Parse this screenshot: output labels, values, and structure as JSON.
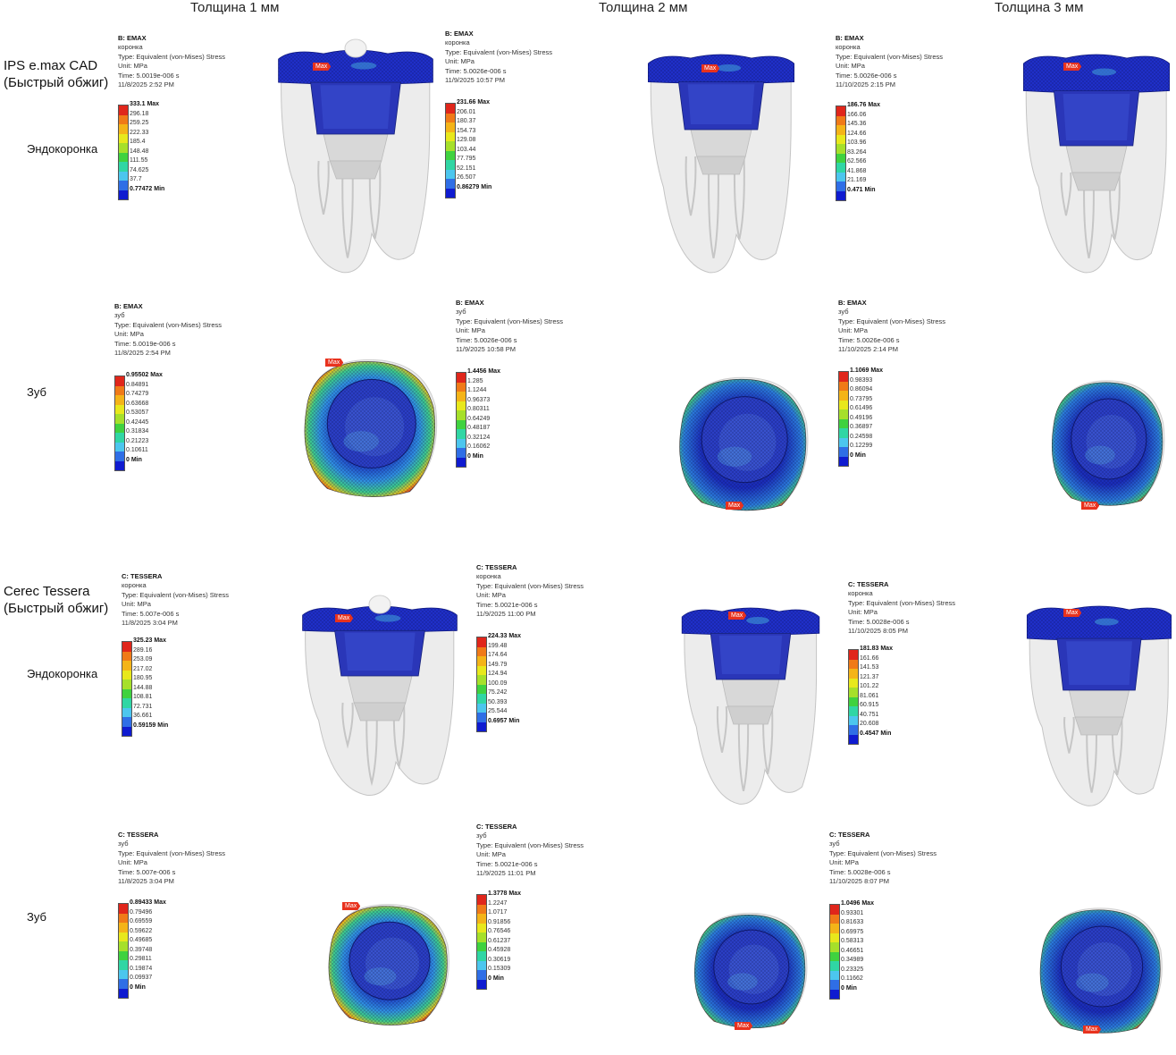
{
  "columns": [
    "Толщина 1 мм",
    "Толщина 2 мм",
    "Толщина 3 мм"
  ],
  "materials": [
    {
      "name": "IPS e.max CAD (Быстрый обжиг)"
    },
    {
      "name": "Cerec Tessera (Быстрый обжиг)"
    }
  ],
  "row_labels": {
    "crown": "Эндокоронка",
    "tooth": "Зуб"
  },
  "max_label": "Max",
  "panels": [
    {
      "title": "B: EMAX",
      "part": "коронка",
      "type": "Type: Equivalent (von-Mises) Stress",
      "unit": "Unit: MPa",
      "time": "Time: 5.0019e-006 s",
      "date": "11/8/2025 2:52 PM",
      "legend": [
        "333.1 Max",
        "296.18",
        "259.25",
        "222.33",
        "185.4",
        "148.48",
        "111.55",
        "74.625",
        "37.7",
        "0.77472 Min"
      ]
    },
    {
      "title": "B: EMAX",
      "part": "коронка",
      "type": "Type: Equivalent (von-Mises) Stress",
      "unit": "Unit: MPa",
      "time": "Time: 5.0026e-006 s",
      "date": "11/9/2025 10:57 PM",
      "legend": [
        "231.66 Max",
        "206.01",
        "180.37",
        "154.73",
        "129.08",
        "103.44",
        "77.795",
        "52.151",
        "26.507",
        "0.86279 Min"
      ]
    },
    {
      "title": "B: EMAX",
      "part": "коронка",
      "type": "Type: Equivalent (von-Mises) Stress",
      "unit": "Unit: MPa",
      "time": "Time: 5.0026e-006 s",
      "date": "11/10/2025 2:15 PM",
      "legend": [
        "186.76 Max",
        "166.06",
        "145.36",
        "124.66",
        "103.96",
        "83.264",
        "62.566",
        "41.868",
        "21.169",
        "0.471 Min"
      ]
    },
    {
      "title": "B: EMAX",
      "part": "зуб",
      "type": "Type: Equivalent (von-Mises) Stress",
      "unit": "Unit: MPa",
      "time": "Time: 5.0019e-006 s",
      "date": "11/8/2025 2:54 PM",
      "legend": [
        "0.95502 Max",
        "0.84891",
        "0.74279",
        "0.63668",
        "0.53057",
        "0.42445",
        "0.31834",
        "0.21223",
        "0.10611",
        "0 Min"
      ]
    },
    {
      "title": "B: EMAX",
      "part": "зуб",
      "type": "Type: Equivalent (von-Mises) Stress",
      "unit": "Unit: MPa",
      "time": "Time: 5.0026e-006 s",
      "date": "11/9/2025 10:58 PM",
      "legend": [
        "1.4456 Max",
        "1.285",
        "1.1244",
        "0.96373",
        "0.80311",
        "0.64249",
        "0.48187",
        "0.32124",
        "0.16062",
        "0 Min"
      ]
    },
    {
      "title": "B: EMAX",
      "part": "зуб",
      "type": "Type: Equivalent (von-Mises) Stress",
      "unit": "Unit: MPa",
      "time": "Time: 5.0026e-006 s",
      "date": "11/10/2025 2:14 PM",
      "legend": [
        "1.1069 Max",
        "0.98393",
        "0.86094",
        "0.73795",
        "0.61496",
        "0.49196",
        "0.36897",
        "0.24598",
        "0.12299",
        "0 Min"
      ]
    },
    {
      "title": "C: TESSERA",
      "part": "коронка",
      "type": "Type: Equivalent (von-Mises) Stress",
      "unit": "Unit: MPa",
      "time": "Time: 5.007e-006 s",
      "date": "11/8/2025 3:04 PM",
      "legend": [
        "325.23 Max",
        "289.16",
        "253.09",
        "217.02",
        "180.95",
        "144.88",
        "108.81",
        "72.731",
        "36.661",
        "0.59159 Min"
      ]
    },
    {
      "title": "C: TESSERA",
      "part": "коронка",
      "type": "Type: Equivalent (von-Mises) Stress",
      "unit": "Unit: MPa",
      "time": "Time: 5.0021e-006 s",
      "date": "11/9/2025 11:00 PM",
      "legend": [
        "224.33 Max",
        "199.48",
        "174.64",
        "149.79",
        "124.94",
        "100.09",
        "75.242",
        "50.393",
        "25.544",
        "0.6957 Min"
      ]
    },
    {
      "title": "C: TESSERA",
      "part": "коронка",
      "type": "Type: Equivalent (von-Mises) Stress",
      "unit": "Unit: MPa",
      "time": "Time: 5.0028e-006 s",
      "date": "11/10/2025 8:05 PM",
      "legend": [
        "181.83 Max",
        "161.66",
        "141.53",
        "121.37",
        "101.22",
        "81.061",
        "60.915",
        "40.751",
        "20.608",
        "0.4547 Min"
      ]
    },
    {
      "title": "C: TESSERA",
      "part": "зуб",
      "type": "Type: Equivalent (von-Mises) Stress",
      "unit": "Unit: MPa",
      "time": "Time: 5.007e-006 s",
      "date": "11/8/2025 3:04 PM",
      "legend": [
        "0.89433 Max",
        "0.79496",
        "0.69559",
        "0.59622",
        "0.49685",
        "0.39748",
        "0.29811",
        "0.19874",
        "0.09937",
        "0 Min"
      ]
    },
    {
      "title": "C: TESSERA",
      "part": "зуб",
      "type": "Type: Equivalent (von-Mises) Stress",
      "unit": "Unit: MPa",
      "time": "Time: 5.0021e-006 s",
      "date": "11/9/2025 11:01 PM",
      "legend": [
        "1.3778 Max",
        "1.2247",
        "1.0717",
        "0.91856",
        "0.76546",
        "0.61237",
        "0.45928",
        "0.30619",
        "0.15309",
        "0 Min"
      ]
    },
    {
      "title": "C: TESSERA",
      "part": "зуб",
      "type": "Type: Equivalent (von-Mises) Stress",
      "unit": "Unit: MPa",
      "time": "Time: 5.0028e-006 s",
      "date": "11/10/2025 8:07 PM",
      "legend": [
        "1.0496 Max",
        "0.93301",
        "0.81633",
        "0.69975",
        "0.58313",
        "0.46651",
        "0.34989",
        "0.23325",
        "0.11662",
        "0 Min"
      ]
    }
  ],
  "colors": {
    "scale": [
      "#e0261b",
      "#f07a18",
      "#f4b418",
      "#e8e81c",
      "#a6e02a",
      "#3fd23f",
      "#30d6a4",
      "#4cc6ee",
      "#2f6ee6",
      "#0f1bd0"
    ],
    "crown_blue": "#1f2fc8",
    "tooth_gray": "#d4d4d4"
  }
}
